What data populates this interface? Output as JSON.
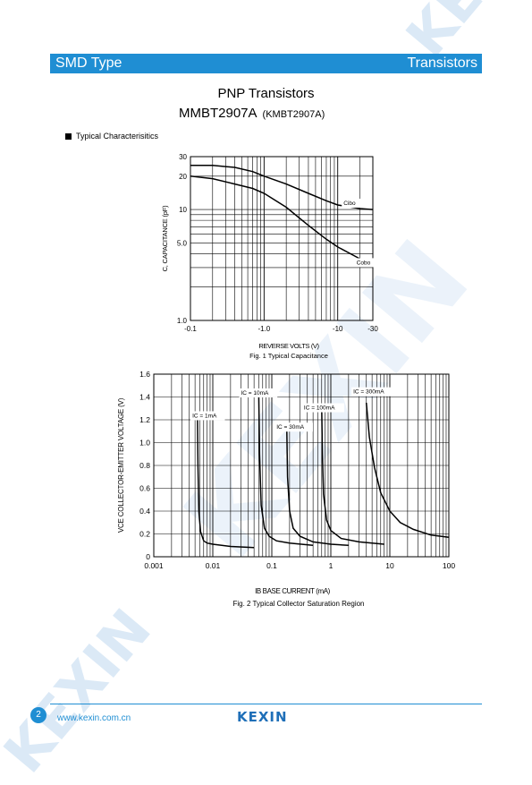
{
  "header": {
    "left": "SMD Type",
    "right": "Transistors"
  },
  "title": {
    "line1": "PNP Transistors",
    "part": "MMBT2907A",
    "part_alt": "(KMBT2907A)"
  },
  "section": {
    "label": "Typical Characterisitics"
  },
  "watermark": {
    "text": "KEXIN"
  },
  "footer": {
    "page": "2",
    "url": "www.kexin.com.cn",
    "brand": "KEXIN"
  },
  "colors": {
    "accent": "#1f8ed3",
    "curve": "#000000",
    "watermark": "#dbe9f6"
  },
  "chart_data": [
    {
      "type": "line",
      "caption": "Fig. 1 Typical Capacitance",
      "xlabel": "REVERSE VOLTS (V)",
      "ylabel": "C, CAPACITANCE (pF)",
      "xscale": "log",
      "yscale": "log",
      "xlim": [
        0.1,
        30
      ],
      "ylim": [
        1,
        30
      ],
      "x_tick_labels": [
        "-0.1",
        "-1.0",
        "-10",
        "-30"
      ],
      "x_ticks": [
        0.1,
        1,
        10,
        30
      ],
      "y_tick_labels": [
        "1.0",
        "5.0",
        "10",
        "20",
        "30"
      ],
      "y_ticks": [
        1,
        5,
        10,
        20,
        30
      ],
      "grid": true,
      "series": [
        {
          "name": "Cibo",
          "label_x": 12,
          "label_y": 11,
          "x": [
            0.1,
            0.2,
            0.4,
            0.7,
            1,
            2,
            4,
            7,
            10,
            20,
            30
          ],
          "y": [
            25,
            25,
            24,
            22,
            20,
            17,
            14,
            12,
            11,
            10.2,
            10
          ]
        },
        {
          "name": "Cobo",
          "label_x": 18,
          "label_y": 3.2,
          "x": [
            0.1,
            0.2,
            0.4,
            0.7,
            1,
            2,
            4,
            7,
            10,
            20,
            30
          ],
          "y": [
            20,
            19,
            17,
            15.5,
            14,
            10.5,
            7.2,
            5.4,
            4.6,
            3.6,
            3.3
          ]
        }
      ]
    },
    {
      "type": "line",
      "caption": "Fig. 2 Typical Collector Saturation Region",
      "xlabel": "IB BASE CURRENT (mA)",
      "ylabel": "VCE COLLECTOR-EMITTER VOLTAGE (V)",
      "xscale": "log",
      "xlim": [
        0.001,
        100
      ],
      "ylim": [
        0,
        1.6
      ],
      "x_tick_labels": [
        "0.001",
        "0.01",
        "0.1",
        "1",
        "10",
        "100"
      ],
      "x_ticks": [
        0.001,
        0.01,
        0.1,
        1,
        10,
        100
      ],
      "y_tick_labels": [
        "0",
        "0.2",
        "0.4",
        "0.6",
        "0.8",
        "1.0",
        "1.2",
        "1.4",
        "1.6"
      ],
      "y_ticks": [
        0,
        0.2,
        0.4,
        0.6,
        0.8,
        1.0,
        1.2,
        1.4,
        1.6
      ],
      "grid": true,
      "series": [
        {
          "name": "IC = 1mA",
          "label_x": 0.0045,
          "label_y": 1.22,
          "x": [
            0.0055,
            0.0056,
            0.0058,
            0.0062,
            0.007,
            0.008,
            0.01,
            0.02,
            0.05
          ],
          "y": [
            1.2,
            0.8,
            0.4,
            0.22,
            0.14,
            0.12,
            0.11,
            0.09,
            0.08
          ]
        },
        {
          "name": "IC = 10mA",
          "label_x": 0.03,
          "label_y": 1.42,
          "x": [
            0.06,
            0.062,
            0.066,
            0.075,
            0.09,
            0.12,
            0.2,
            0.5
          ],
          "y": [
            1.42,
            0.9,
            0.45,
            0.25,
            0.18,
            0.14,
            0.12,
            0.1
          ]
        },
        {
          "name": "IC = 30mA",
          "label_x": 0.12,
          "label_y": 1.12,
          "x": [
            0.18,
            0.185,
            0.2,
            0.23,
            0.3,
            0.5,
            1,
            2
          ],
          "y": [
            1.1,
            0.7,
            0.4,
            0.25,
            0.18,
            0.13,
            0.11,
            0.1
          ]
        },
        {
          "name": "IC = 100mA",
          "label_x": 0.35,
          "label_y": 1.29,
          "x": [
            0.7,
            0.72,
            0.75,
            0.85,
            1.0,
            1.5,
            3,
            8
          ],
          "y": [
            1.3,
            0.9,
            0.55,
            0.32,
            0.23,
            0.16,
            0.13,
            0.11
          ]
        },
        {
          "name": "IC = 300mA",
          "label_x": 2.4,
          "label_y": 1.43,
          "x": [
            4,
            4.5,
            5.5,
            7,
            10,
            15,
            25,
            50,
            100
          ],
          "y": [
            1.35,
            1.05,
            0.78,
            0.56,
            0.4,
            0.3,
            0.24,
            0.19,
            0.17
          ]
        }
      ]
    }
  ]
}
